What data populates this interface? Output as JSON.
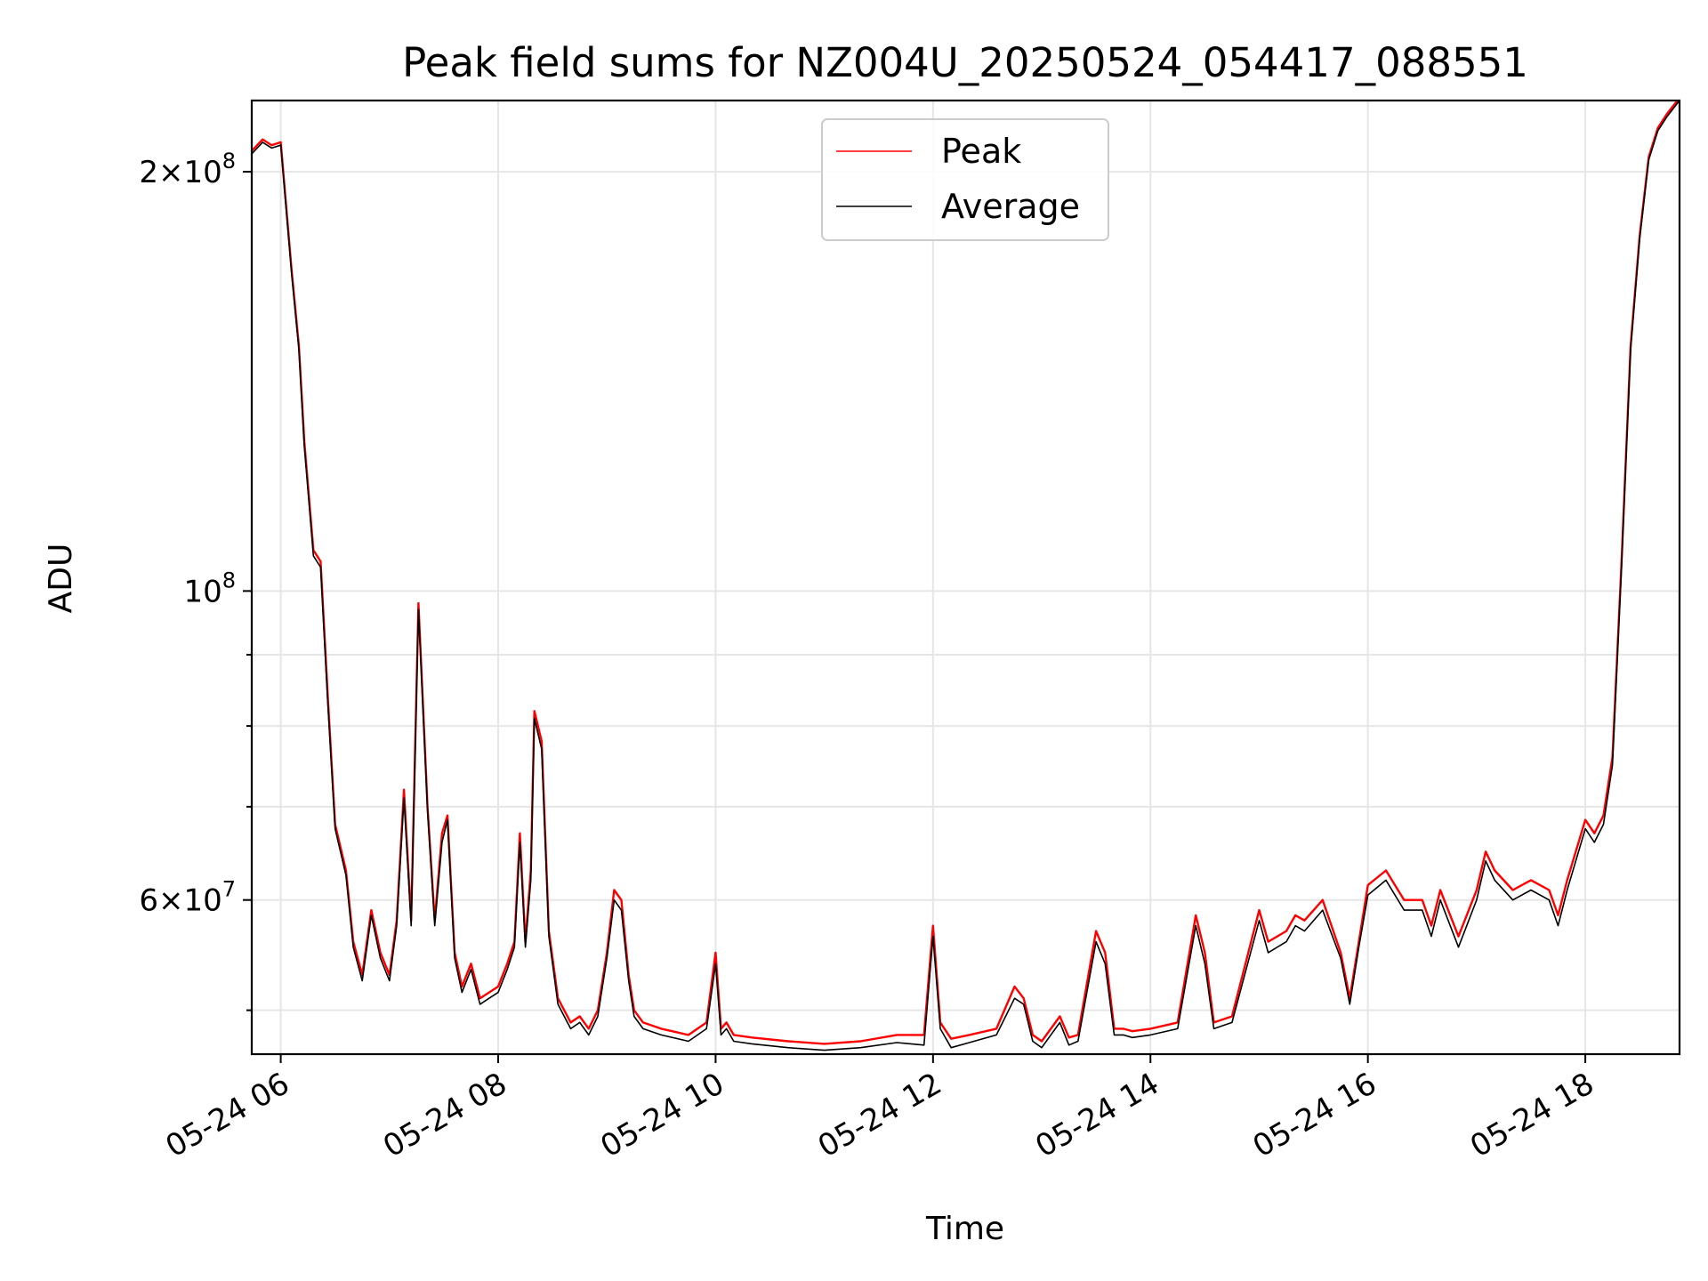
{
  "chart_data": {
    "type": "line",
    "title": "Peak field sums for NZ004U_20250524_054417_088551",
    "xlabel": "Time",
    "ylabel": "ADU",
    "xscale": "time",
    "yscale": "log",
    "xlim": [
      "2025-05-24 05:44",
      "2025-05-24 18:52"
    ],
    "ylim": [
      46500000,
      225000000
    ],
    "grid": true,
    "legend": "upper center",
    "x_ticks": [
      {
        "value": "2025-05-24 06:00",
        "label": "05-24 06"
      },
      {
        "value": "2025-05-24 08:00",
        "label": "05-24 08"
      },
      {
        "value": "2025-05-24 10:00",
        "label": "05-24 10"
      },
      {
        "value": "2025-05-24 12:00",
        "label": "05-24 12"
      },
      {
        "value": "2025-05-24 14:00",
        "label": "05-24 14"
      },
      {
        "value": "2025-05-24 16:00",
        "label": "05-24 16"
      },
      {
        "value": "2025-05-24 18:00",
        "label": "05-24 18"
      }
    ],
    "y_ticks": [
      {
        "value": 200000000,
        "mantissa": "2×10",
        "exponent": "8"
      },
      {
        "value": 100000000,
        "mantissa": "10",
        "exponent": "8"
      },
      {
        "value": 60000000,
        "mantissa": "6×10",
        "exponent": "7"
      }
    ],
    "y_minor_ticks": [
      50000000,
      70000000,
      80000000,
      90000000
    ],
    "series": [
      {
        "name": "Peak",
        "color": "#ff0000",
        "x": [
          "2025-05-24 05:44",
          "2025-05-24 05:50",
          "2025-05-24 05:55",
          "2025-05-24 06:00",
          "2025-05-24 06:06",
          "2025-05-24 06:10",
          "2025-05-24 06:13",
          "2025-05-24 06:18",
          "2025-05-24 06:22",
          "2025-05-24 06:26",
          "2025-05-24 06:30",
          "2025-05-24 06:36",
          "2025-05-24 06:40",
          "2025-05-24 06:45",
          "2025-05-24 06:50",
          "2025-05-24 06:55",
          "2025-05-24 07:00",
          "2025-05-24 07:04",
          "2025-05-24 07:08",
          "2025-05-24 07:12",
          "2025-05-24 07:16",
          "2025-05-24 07:21",
          "2025-05-24 07:25",
          "2025-05-24 07:29",
          "2025-05-24 07:32",
          "2025-05-24 07:36",
          "2025-05-24 07:40",
          "2025-05-24 07:45",
          "2025-05-24 07:50",
          "2025-05-24 07:55",
          "2025-05-24 08:00",
          "2025-05-24 08:05",
          "2025-05-24 08:09",
          "2025-05-24 08:12",
          "2025-05-24 08:15",
          "2025-05-24 08:18",
          "2025-05-24 08:20",
          "2025-05-24 08:24",
          "2025-05-24 08:28",
          "2025-05-24 08:33",
          "2025-05-24 08:40",
          "2025-05-24 08:45",
          "2025-05-24 08:50",
          "2025-05-24 08:55",
          "2025-05-24 09:00",
          "2025-05-24 09:04",
          "2025-05-24 09:08",
          "2025-05-24 09:12",
          "2025-05-24 09:15",
          "2025-05-24 09:20",
          "2025-05-24 09:30",
          "2025-05-24 09:45",
          "2025-05-24 09:55",
          "2025-05-24 10:00",
          "2025-05-24 10:03",
          "2025-05-24 10:06",
          "2025-05-24 10:10",
          "2025-05-24 10:20",
          "2025-05-24 10:40",
          "2025-05-24 11:00",
          "2025-05-24 11:20",
          "2025-05-24 11:40",
          "2025-05-24 11:55",
          "2025-05-24 12:00",
          "2025-05-24 12:04",
          "2025-05-24 12:10",
          "2025-05-24 12:20",
          "2025-05-24 12:35",
          "2025-05-24 12:45",
          "2025-05-24 12:50",
          "2025-05-24 12:55",
          "2025-05-24 13:00",
          "2025-05-24 13:10",
          "2025-05-24 13:15",
          "2025-05-24 13:20",
          "2025-05-24 13:30",
          "2025-05-24 13:35",
          "2025-05-24 13:40",
          "2025-05-24 13:45",
          "2025-05-24 13:50",
          "2025-05-24 14:00",
          "2025-05-24 14:15",
          "2025-05-24 14:25",
          "2025-05-24 14:30",
          "2025-05-24 14:35",
          "2025-05-24 14:45",
          "2025-05-24 15:00",
          "2025-05-24 15:05",
          "2025-05-24 15:15",
          "2025-05-24 15:20",
          "2025-05-24 15:25",
          "2025-05-24 15:35",
          "2025-05-24 15:45",
          "2025-05-24 15:50",
          "2025-05-24 15:55",
          "2025-05-24 16:00",
          "2025-05-24 16:10",
          "2025-05-24 16:20",
          "2025-05-24 16:30",
          "2025-05-24 16:35",
          "2025-05-24 16:40",
          "2025-05-24 16:50",
          "2025-05-24 17:00",
          "2025-05-24 17:05",
          "2025-05-24 17:10",
          "2025-05-24 17:20",
          "2025-05-24 17:30",
          "2025-05-24 17:40",
          "2025-05-24 17:45",
          "2025-05-24 17:50",
          "2025-05-24 18:00",
          "2025-05-24 18:05",
          "2025-05-24 18:10",
          "2025-05-24 18:15",
          "2025-05-24 18:20",
          "2025-05-24 18:25",
          "2025-05-24 18:30",
          "2025-05-24 18:35",
          "2025-05-24 18:40",
          "2025-05-24 18:45",
          "2025-05-24 18:52"
        ],
        "y": [
          207000000,
          211000000,
          209000000,
          210000000,
          170000000,
          150000000,
          128000000,
          107000000,
          105000000,
          84000000,
          68000000,
          63000000,
          56000000,
          53000000,
          59000000,
          55000000,
          53000000,
          58000000,
          72000000,
          58000000,
          98000000,
          70000000,
          58000000,
          67000000,
          69000000,
          55000000,
          52000000,
          54000000,
          51000000,
          51500000,
          52000000,
          54000000,
          56000000,
          67000000,
          56000000,
          63000000,
          82000000,
          78000000,
          57000000,
          51000000,
          49000000,
          49500000,
          48500000,
          50000000,
          55000000,
          61000000,
          60000000,
          53000000,
          50000000,
          49000000,
          48500000,
          48000000,
          49000000,
          55000000,
          48500000,
          49000000,
          48000000,
          47800000,
          47500000,
          47300000,
          47500000,
          48000000,
          48000000,
          57500000,
          49000000,
          47700000,
          48000000,
          48500000,
          52000000,
          51000000,
          48000000,
          47500000,
          49500000,
          47800000,
          48000000,
          57000000,
          55000000,
          48500000,
          48500000,
          48300000,
          48500000,
          49000000,
          58500000,
          55000000,
          49000000,
          49500000,
          59000000,
          56000000,
          57000000,
          58500000,
          58000000,
          60000000,
          55000000,
          51000000,
          56000000,
          61500000,
          63000000,
          60000000,
          60000000,
          57500000,
          61000000,
          56500000,
          61000000,
          65000000,
          63000000,
          61000000,
          62000000,
          61000000,
          58500000,
          62000000,
          68500000,
          67000000,
          69000000,
          76000000,
          105000000,
          150000000,
          180000000,
          205000000,
          215000000,
          220000000,
          226000000
        ]
      },
      {
        "name": "Average",
        "color": "#000000",
        "x": [
          "2025-05-24 05:44",
          "2025-05-24 05:50",
          "2025-05-24 05:55",
          "2025-05-24 06:00",
          "2025-05-24 06:06",
          "2025-05-24 06:10",
          "2025-05-24 06:13",
          "2025-05-24 06:18",
          "2025-05-24 06:22",
          "2025-05-24 06:26",
          "2025-05-24 06:30",
          "2025-05-24 06:36",
          "2025-05-24 06:40",
          "2025-05-24 06:45",
          "2025-05-24 06:50",
          "2025-05-24 06:55",
          "2025-05-24 07:00",
          "2025-05-24 07:04",
          "2025-05-24 07:08",
          "2025-05-24 07:12",
          "2025-05-24 07:16",
          "2025-05-24 07:21",
          "2025-05-24 07:25",
          "2025-05-24 07:29",
          "2025-05-24 07:32",
          "2025-05-24 07:36",
          "2025-05-24 07:40",
          "2025-05-24 07:45",
          "2025-05-24 07:50",
          "2025-05-24 07:55",
          "2025-05-24 08:00",
          "2025-05-24 08:05",
          "2025-05-24 08:09",
          "2025-05-24 08:12",
          "2025-05-24 08:15",
          "2025-05-24 08:18",
          "2025-05-24 08:20",
          "2025-05-24 08:24",
          "2025-05-24 08:28",
          "2025-05-24 08:33",
          "2025-05-24 08:40",
          "2025-05-24 08:45",
          "2025-05-24 08:50",
          "2025-05-24 08:55",
          "2025-05-24 09:00",
          "2025-05-24 09:04",
          "2025-05-24 09:08",
          "2025-05-24 09:12",
          "2025-05-24 09:15",
          "2025-05-24 09:20",
          "2025-05-24 09:30",
          "2025-05-24 09:45",
          "2025-05-24 09:55",
          "2025-05-24 10:00",
          "2025-05-24 10:03",
          "2025-05-24 10:06",
          "2025-05-24 10:10",
          "2025-05-24 10:20",
          "2025-05-24 10:40",
          "2025-05-24 11:00",
          "2025-05-24 11:20",
          "2025-05-24 11:40",
          "2025-05-24 11:55",
          "2025-05-24 12:00",
          "2025-05-24 12:04",
          "2025-05-24 12:10",
          "2025-05-24 12:20",
          "2025-05-24 12:35",
          "2025-05-24 12:45",
          "2025-05-24 12:50",
          "2025-05-24 12:55",
          "2025-05-24 13:00",
          "2025-05-24 13:10",
          "2025-05-24 13:15",
          "2025-05-24 13:20",
          "2025-05-24 13:30",
          "2025-05-24 13:35",
          "2025-05-24 13:40",
          "2025-05-24 13:45",
          "2025-05-24 13:50",
          "2025-05-24 14:00",
          "2025-05-24 14:15",
          "2025-05-24 14:25",
          "2025-05-24 14:30",
          "2025-05-24 14:35",
          "2025-05-24 14:45",
          "2025-05-24 15:00",
          "2025-05-24 15:05",
          "2025-05-24 15:15",
          "2025-05-24 15:20",
          "2025-05-24 15:25",
          "2025-05-24 15:35",
          "2025-05-24 15:45",
          "2025-05-24 15:50",
          "2025-05-24 15:55",
          "2025-05-24 16:00",
          "2025-05-24 16:10",
          "2025-05-24 16:20",
          "2025-05-24 16:30",
          "2025-05-24 16:35",
          "2025-05-24 16:40",
          "2025-05-24 16:50",
          "2025-05-24 17:00",
          "2025-05-24 17:05",
          "2025-05-24 17:10",
          "2025-05-24 17:20",
          "2025-05-24 17:30",
          "2025-05-24 17:40",
          "2025-05-24 17:45",
          "2025-05-24 17:50",
          "2025-05-24 18:00",
          "2025-05-24 18:05",
          "2025-05-24 18:10",
          "2025-05-24 18:15",
          "2025-05-24 18:20",
          "2025-05-24 18:25",
          "2025-05-24 18:30",
          "2025-05-24 18:35",
          "2025-05-24 18:40",
          "2025-05-24 18:45",
          "2025-05-24 18:52"
        ],
        "y": [
          206000000,
          210000000,
          208000000,
          209000000,
          169000000,
          149000000,
          127000000,
          106000000,
          104000000,
          83000000,
          67500000,
          62500000,
          55500000,
          52500000,
          58500000,
          54500000,
          52500000,
          57500000,
          71000000,
          57500000,
          97000000,
          69500000,
          57500000,
          66000000,
          68500000,
          54500000,
          51500000,
          53500000,
          50500000,
          51000000,
          51500000,
          53500000,
          55500000,
          66000000,
          55500000,
          62000000,
          81000000,
          77000000,
          56500000,
          50500000,
          48500000,
          49000000,
          48000000,
          49500000,
          54500000,
          60000000,
          59000000,
          52500000,
          49500000,
          48500000,
          48000000,
          47500000,
          48500000,
          54000000,
          48000000,
          48500000,
          47500000,
          47300000,
          47000000,
          46800000,
          47000000,
          47400000,
          47200000,
          56500000,
          48500000,
          47000000,
          47400000,
          48000000,
          51000000,
          50500000,
          47500000,
          47000000,
          49000000,
          47200000,
          47500000,
          56000000,
          54000000,
          48000000,
          48000000,
          47800000,
          48000000,
          48500000,
          57500000,
          54000000,
          48500000,
          49000000,
          58000000,
          55000000,
          56000000,
          57500000,
          57000000,
          59000000,
          54500000,
          50500000,
          55500000,
          60500000,
          62000000,
          59000000,
          59000000,
          56500000,
          60000000,
          55500000,
          60000000,
          64000000,
          62000000,
          60000000,
          61000000,
          60000000,
          57500000,
          61000000,
          67500000,
          66000000,
          68000000,
          75000000,
          104000000,
          149000000,
          179000000,
          204000000,
          214000000,
          219000000,
          225000000
        ]
      }
    ]
  }
}
